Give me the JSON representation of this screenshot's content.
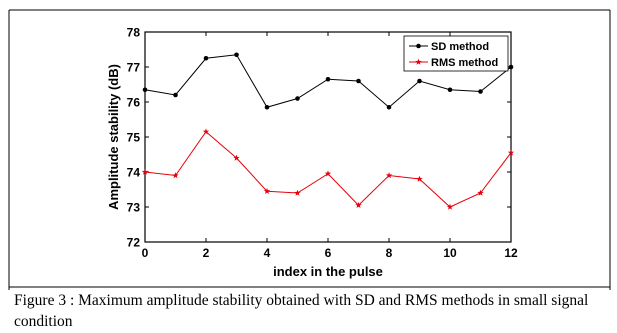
{
  "chart_data": {
    "type": "line",
    "xlabel": "index in the pulse",
    "ylabel": "Amplitude stability (dB)",
    "xlim": [
      0,
      12
    ],
    "ylim": [
      72,
      78
    ],
    "x_ticks": [
      "0",
      "2",
      "4",
      "6",
      "8",
      "10",
      "12"
    ],
    "y_ticks": [
      "72",
      "73",
      "74",
      "75",
      "76",
      "77",
      "78"
    ],
    "grid": false,
    "legend_position": "top-right",
    "x": [
      0,
      1,
      2,
      3,
      4,
      5,
      6,
      7,
      8,
      9,
      10,
      11,
      12
    ],
    "series": [
      {
        "name": "SD method",
        "marker": "circle",
        "color": "#000000",
        "values": [
          76.35,
          76.2,
          77.25,
          77.35,
          75.85,
          76.1,
          76.65,
          76.6,
          75.85,
          76.6,
          76.35,
          76.3,
          77.0
        ]
      },
      {
        "name": "RMS method",
        "marker": "star",
        "color": "#e8000b",
        "values": [
          74.0,
          73.9,
          75.15,
          74.4,
          73.45,
          73.4,
          73.95,
          73.05,
          73.9,
          73.8,
          73.0,
          73.4,
          74.55
        ]
      }
    ]
  },
  "caption": {
    "text": "Figure 3 : Maximum amplitude stability obtained with SD and RMS methods in small signal condition"
  }
}
